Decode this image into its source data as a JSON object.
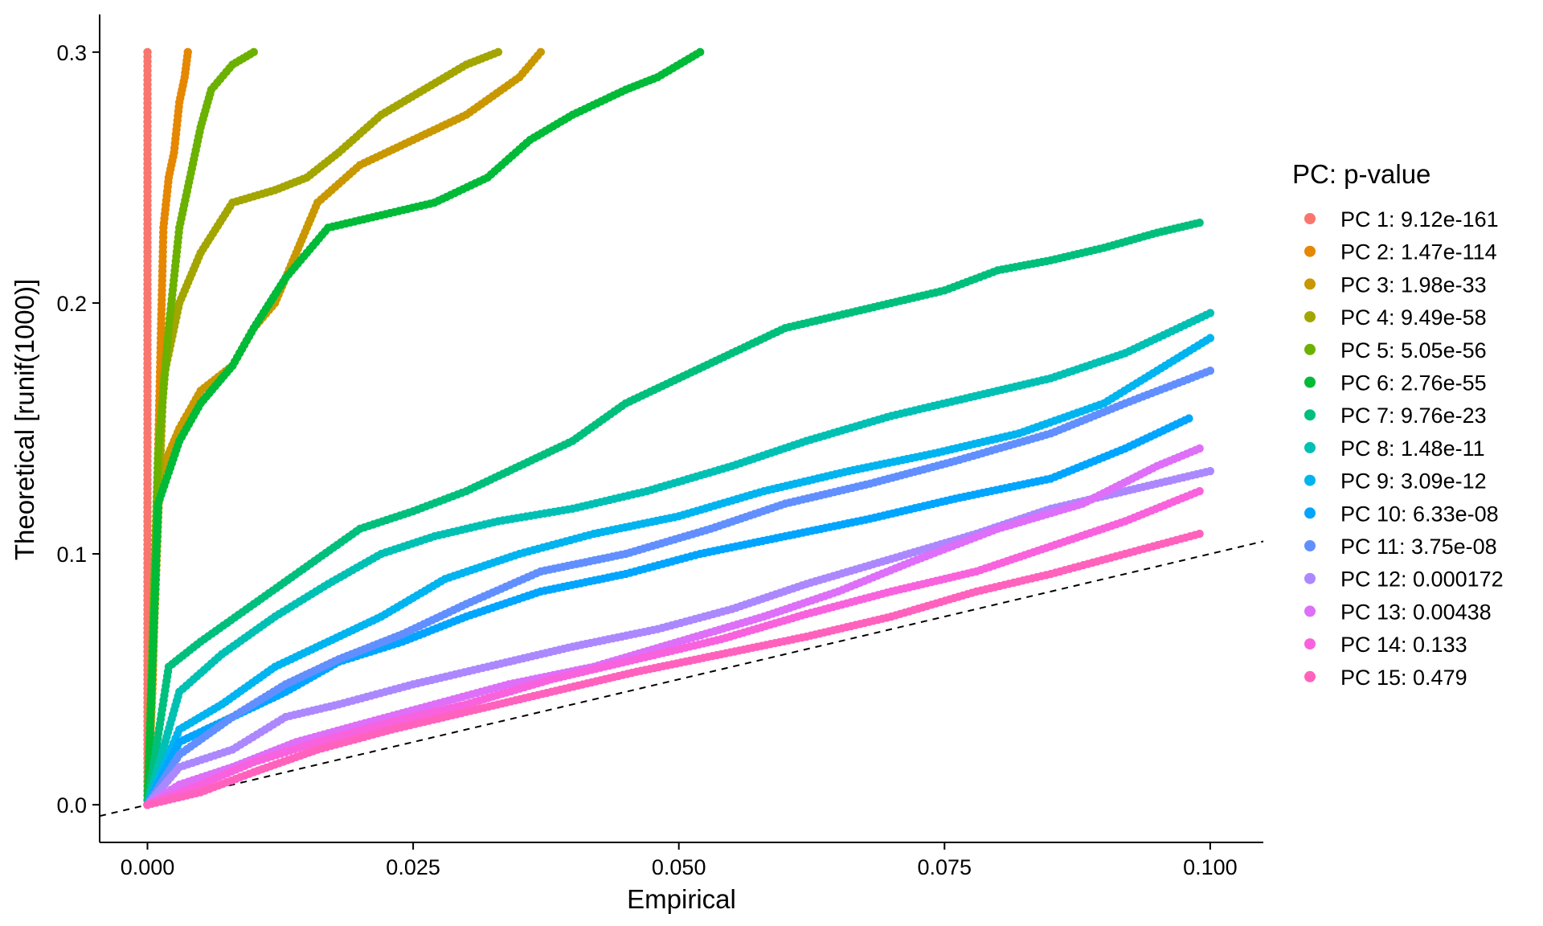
{
  "chart_data": {
    "type": "scatter",
    "title": "",
    "xlabel": "Empirical",
    "ylabel": "Theoretical [runif(1000)]",
    "xlim": [
      -0.0045,
      0.105
    ],
    "ylim": [
      -0.015,
      0.315
    ],
    "x_ticks": [
      0.0,
      0.025,
      0.05,
      0.075,
      0.1
    ],
    "x_tick_labels": [
      "0.000",
      "0.025",
      "0.050",
      "0.075",
      "0.100"
    ],
    "y_ticks": [
      0.0,
      0.1,
      0.2,
      0.3
    ],
    "y_tick_labels": [
      "0.0",
      "0.1",
      "0.2",
      "0.3"
    ],
    "grid": false,
    "legend_title": "PC: p-value",
    "legend_position": "right",
    "reference_line": {
      "style": "dashed",
      "color": "#000000",
      "slope": 1.0,
      "intercept": 0
    },
    "series": [
      {
        "name": "PC 1: 9.12e-161",
        "color": "#F8766D",
        "x": [
          0,
          0,
          0,
          0,
          0,
          0,
          0
        ],
        "y": [
          0,
          0.05,
          0.1,
          0.15,
          0.2,
          0.25,
          0.3
        ]
      },
      {
        "name": "PC 2: 1.47e-114",
        "color": "#E58700",
        "x": [
          0,
          0.0005,
          0.001,
          0.0015,
          0.002,
          0.0025,
          0.003,
          0.0035,
          0.0038
        ],
        "y": [
          0,
          0.05,
          0.14,
          0.23,
          0.25,
          0.26,
          0.28,
          0.29,
          0.3
        ]
      },
      {
        "name": "PC 3: 1.98e-33",
        "color": "#C99800",
        "x": [
          0,
          0.001,
          0.003,
          0.005,
          0.008,
          0.01,
          0.012,
          0.014,
          0.016,
          0.02,
          0.025,
          0.03,
          0.035,
          0.037
        ],
        "y": [
          0,
          0.13,
          0.15,
          0.165,
          0.175,
          0.19,
          0.2,
          0.22,
          0.24,
          0.255,
          0.265,
          0.275,
          0.29,
          0.3
        ]
      },
      {
        "name": "PC 4: 9.49e-58",
        "color": "#A3A500",
        "x": [
          0,
          0.0015,
          0.003,
          0.005,
          0.008,
          0.012,
          0.015,
          0.018,
          0.022,
          0.026,
          0.03,
          0.033
        ],
        "y": [
          0,
          0.17,
          0.2,
          0.22,
          0.24,
          0.245,
          0.25,
          0.26,
          0.275,
          0.285,
          0.295,
          0.3
        ]
      },
      {
        "name": "PC 5: 5.05e-56",
        "color": "#6BB100",
        "x": [
          0,
          0.001,
          0.002,
          0.003,
          0.004,
          0.005,
          0.006,
          0.008,
          0.01
        ],
        "y": [
          0,
          0.14,
          0.19,
          0.23,
          0.25,
          0.27,
          0.285,
          0.295,
          0.3
        ]
      },
      {
        "name": "PC 6: 2.76e-55",
        "color": "#00BA38",
        "x": [
          0,
          0.001,
          0.003,
          0.005,
          0.008,
          0.01,
          0.013,
          0.017,
          0.022,
          0.027,
          0.032,
          0.036,
          0.04,
          0.045,
          0.048,
          0.052
        ],
        "y": [
          0,
          0.12,
          0.145,
          0.16,
          0.175,
          0.19,
          0.21,
          0.23,
          0.235,
          0.24,
          0.25,
          0.265,
          0.275,
          0.285,
          0.29,
          0.3
        ]
      },
      {
        "name": "PC 7: 9.76e-23",
        "color": "#00BF7D",
        "x": [
          0,
          0.002,
          0.005,
          0.01,
          0.015,
          0.02,
          0.025,
          0.03,
          0.035,
          0.04,
          0.045,
          0.05,
          0.055,
          0.06,
          0.065,
          0.07,
          0.075,
          0.08,
          0.085,
          0.09,
          0.095,
          0.099
        ],
        "y": [
          0,
          0.055,
          0.065,
          0.08,
          0.095,
          0.11,
          0.117,
          0.125,
          0.135,
          0.145,
          0.16,
          0.17,
          0.18,
          0.19,
          0.195,
          0.2,
          0.205,
          0.213,
          0.217,
          0.222,
          0.228,
          0.232
        ]
      },
      {
        "name": "PC 8: 1.48e-11",
        "color": "#00C0B4",
        "x": [
          0,
          0.003,
          0.007,
          0.012,
          0.017,
          0.022,
          0.027,
          0.033,
          0.04,
          0.047,
          0.055,
          0.062,
          0.07,
          0.077,
          0.085,
          0.092,
          0.1
        ],
        "y": [
          0,
          0.045,
          0.06,
          0.075,
          0.088,
          0.1,
          0.107,
          0.113,
          0.118,
          0.125,
          0.135,
          0.145,
          0.155,
          0.162,
          0.17,
          0.18,
          0.196
        ]
      },
      {
        "name": "PC 9: 3.09e-12",
        "color": "#00B4EF",
        "x": [
          0,
          0.003,
          0.007,
          0.012,
          0.017,
          0.022,
          0.028,
          0.035,
          0.042,
          0.05,
          0.058,
          0.066,
          0.074,
          0.082,
          0.09,
          0.1
        ],
        "y": [
          0,
          0.03,
          0.04,
          0.055,
          0.065,
          0.075,
          0.09,
          0.1,
          0.108,
          0.115,
          0.125,
          0.133,
          0.14,
          0.148,
          0.16,
          0.186
        ]
      },
      {
        "name": "PC 10: 6.33e-08",
        "color": "#00A5FF",
        "x": [
          0,
          0.003,
          0.008,
          0.013,
          0.018,
          0.024,
          0.03,
          0.037,
          0.045,
          0.052,
          0.06,
          0.068,
          0.076,
          0.085,
          0.092,
          0.098
        ],
        "y": [
          0,
          0.025,
          0.035,
          0.045,
          0.057,
          0.065,
          0.075,
          0.085,
          0.092,
          0.1,
          0.107,
          0.114,
          0.122,
          0.13,
          0.142,
          0.154
        ]
      },
      {
        "name": "PC 11: 3.75e-08",
        "color": "#628FFF",
        "x": [
          0,
          0.003,
          0.008,
          0.013,
          0.018,
          0.024,
          0.03,
          0.037,
          0.045,
          0.053,
          0.06,
          0.068,
          0.076,
          0.085,
          0.092,
          0.1
        ],
        "y": [
          0,
          0.02,
          0.035,
          0.048,
          0.058,
          0.068,
          0.08,
          0.093,
          0.1,
          0.11,
          0.12,
          0.128,
          0.137,
          0.148,
          0.16,
          0.173
        ]
      },
      {
        "name": "PC 12: 0.000172",
        "color": "#AC88FF",
        "x": [
          0,
          0.003,
          0.008,
          0.013,
          0.018,
          0.025,
          0.032,
          0.04,
          0.048,
          0.055,
          0.062,
          0.07,
          0.078,
          0.085,
          0.092,
          0.1
        ],
        "y": [
          0,
          0.015,
          0.022,
          0.035,
          0.04,
          0.048,
          0.055,
          0.063,
          0.07,
          0.078,
          0.088,
          0.098,
          0.108,
          0.118,
          0.125,
          0.133
        ]
      },
      {
        "name": "PC 13: 0.00438",
        "color": "#DE6FF8",
        "x": [
          0,
          0.003,
          0.008,
          0.014,
          0.02,
          0.027,
          0.034,
          0.042,
          0.05,
          0.058,
          0.065,
          0.072,
          0.08,
          0.088,
          0.095,
          0.099
        ],
        "y": [
          0,
          0.008,
          0.015,
          0.025,
          0.032,
          0.04,
          0.048,
          0.055,
          0.065,
          0.075,
          0.085,
          0.097,
          0.11,
          0.12,
          0.135,
          0.142
        ]
      },
      {
        "name": "PC 14: 0.133",
        "color": "#F962DD",
        "x": [
          0,
          0.005,
          0.01,
          0.016,
          0.023,
          0.03,
          0.038,
          0.046,
          0.054,
          0.062,
          0.07,
          0.078,
          0.085,
          0.092,
          0.099
        ],
        "y": [
          0,
          0.008,
          0.017,
          0.025,
          0.033,
          0.04,
          0.05,
          0.058,
          0.066,
          0.076,
          0.085,
          0.093,
          0.103,
          0.113,
          0.125
        ]
      },
      {
        "name": "PC 15: 0.479",
        "color": "#FF62BC",
        "x": [
          0,
          0.005,
          0.01,
          0.016,
          0.023,
          0.03,
          0.038,
          0.046,
          0.054,
          0.062,
          0.07,
          0.078,
          0.085,
          0.092,
          0.099
        ],
        "y": [
          0,
          0.005,
          0.013,
          0.022,
          0.03,
          0.037,
          0.045,
          0.053,
          0.06,
          0.067,
          0.075,
          0.085,
          0.092,
          0.1,
          0.108
        ]
      }
    ]
  }
}
